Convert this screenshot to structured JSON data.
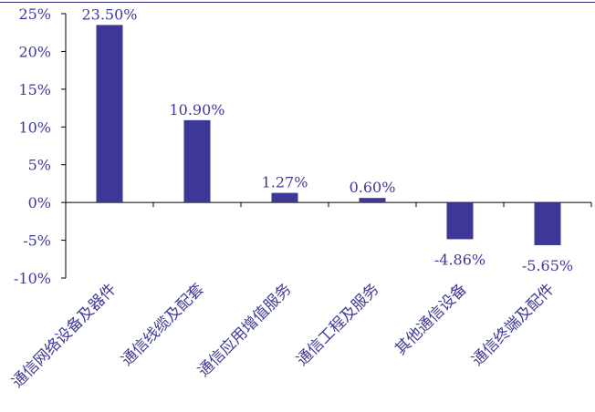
{
  "chart_data": {
    "type": "bar",
    "categories": [
      "通信网络设备及器件",
      "通信线缆及配套",
      "通信应用增值服务",
      "通信工程及服务",
      "其他通信设备",
      "通信终端及配件"
    ],
    "values": [
      23.5,
      10.9,
      1.27,
      0.6,
      -4.86,
      -5.65
    ],
    "value_labels": [
      "23.50%",
      "10.90%",
      "1.27%",
      "0.60%",
      "-4.86%",
      "-5.65%"
    ],
    "y_ticks": [
      25,
      20,
      15,
      10,
      5,
      0,
      -5,
      -10
    ],
    "y_tick_labels": [
      "25%",
      "20%",
      "15%",
      "10%",
      "5%",
      "0%",
      "-5%",
      "-10%"
    ],
    "ylim": [
      -10,
      25
    ],
    "title": "",
    "xlabel": "",
    "ylabel": "",
    "grid": false,
    "colors": {
      "bar": "#3d3797",
      "axis": "#000000",
      "text": "#3f3a9a"
    }
  }
}
